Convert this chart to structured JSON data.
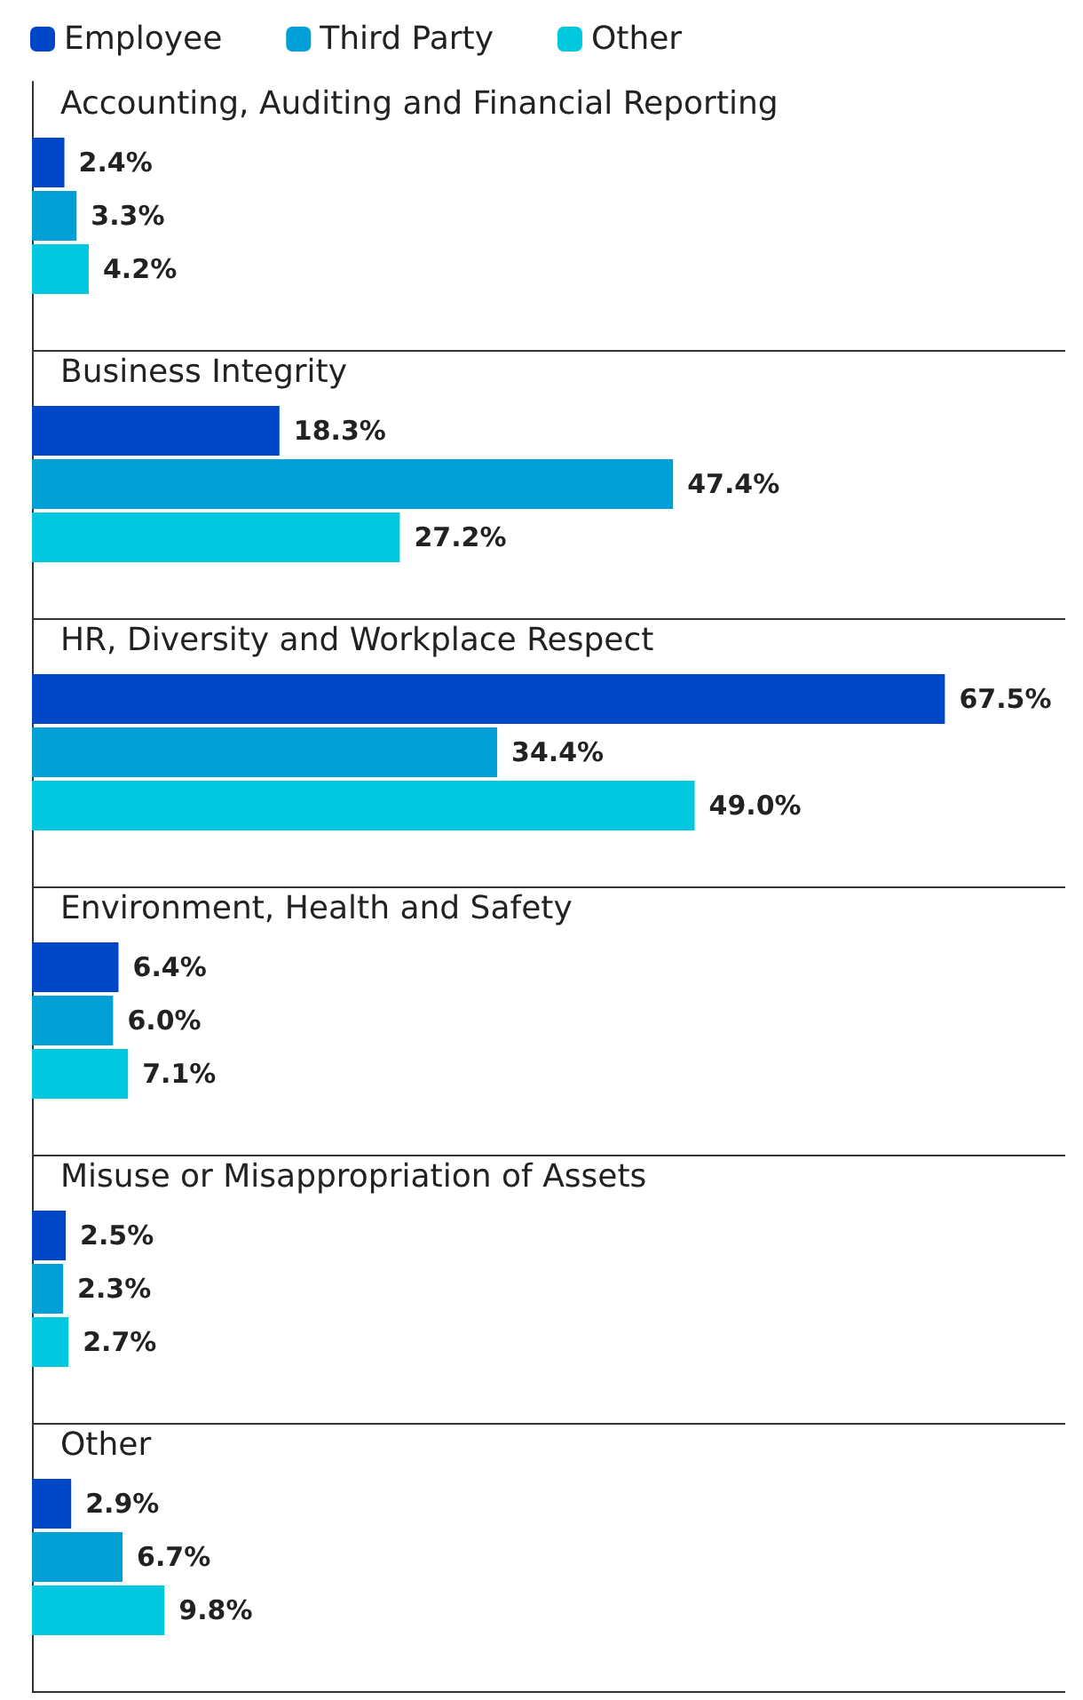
{
  "chart_data": {
    "type": "bar",
    "orientation": "horizontal",
    "categories": [
      "Accounting, Auditing and Financial Reporting",
      "Business Integrity",
      "HR, Diversity and Workplace Respect",
      "Environment, Health and Safety",
      "Misuse or Misappropriation of Assets",
      "Other"
    ],
    "series": [
      {
        "name": "Employee",
        "color": "#0047c8",
        "values": [
          2.4,
          18.3,
          67.5,
          6.4,
          2.5,
          2.9
        ],
        "value_labels": [
          "2.4%",
          "18.3%",
          "67.5%",
          "6.4%",
          "2.5%",
          "2.9%"
        ]
      },
      {
        "name": "Third Party",
        "color": "#00a0d6",
        "values": [
          3.3,
          47.4,
          34.4,
          6.0,
          2.3,
          6.7
        ],
        "value_labels": [
          "3.3%",
          "47.4%",
          "34.4%",
          "6.0%",
          "2.3%",
          "6.7%"
        ]
      },
      {
        "name": "Other",
        "color": "#00c8de",
        "values": [
          4.2,
          27.2,
          49.0,
          7.1,
          2.7,
          9.8
        ],
        "value_labels": [
          "4.2%",
          "27.2%",
          "49.0%",
          "7.1%",
          "2.7%",
          "9.8%"
        ]
      }
    ],
    "xlim": [
      0,
      76.4
    ],
    "legend": "top left",
    "tick_labels": "y"
  }
}
